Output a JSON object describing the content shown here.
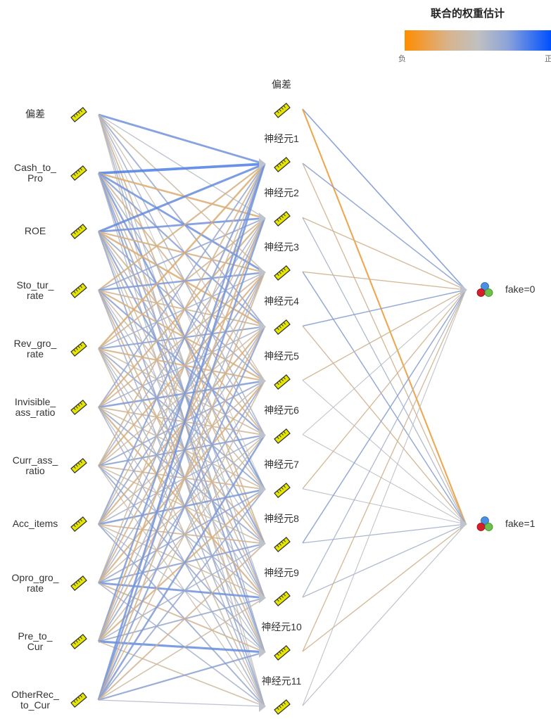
{
  "legend": {
    "title": "联合的权重估计",
    "negative_label": "负",
    "positive_label": "正",
    "colors": {
      "negative": "#ff8c00",
      "neutral": "#c0c0c0",
      "positive": "#0050ff"
    }
  },
  "layers": {
    "input": [
      "偏差",
      "Cash_to_\nPro",
      "ROE",
      "Sto_tur_\nrate",
      "Rev_gro_\nrate",
      "Invisible_\nass_ratio",
      "Curr_ass_\nratio",
      "Acc_items",
      "Opro_gro_\nrate",
      "Pre_to_\nCur",
      "OtherRec_\nto_Cur"
    ],
    "hidden": [
      "偏差",
      "神经元1",
      "神经元2",
      "神经元3",
      "神经元4",
      "神经元5",
      "神经元6",
      "神经元7",
      "神经元8",
      "神经元9",
      "神经元10",
      "神经元11"
    ],
    "output": [
      "fake=0",
      "fake=1"
    ]
  },
  "icons": {
    "input_node": "ruler-icon",
    "hidden_node": "ruler-icon",
    "output_node": "nominal-set-icon"
  },
  "weights": {
    "input_to_hidden": [
      [
        0.6,
        0.1,
        -0.2,
        0.3,
        -0.1,
        0.2,
        0.0,
        -0.3,
        0.1,
        0.2,
        -0.1
      ],
      [
        0.9,
        -0.5,
        0.6,
        0.4,
        -0.3,
        0.2,
        0.5,
        -0.2,
        0.3,
        0.4,
        0.1
      ],
      [
        0.7,
        0.6,
        -0.4,
        -0.5,
        0.3,
        -0.3,
        0.2,
        0.4,
        -0.2,
        0.1,
        0.3
      ],
      [
        -0.4,
        0.3,
        0.5,
        -0.3,
        -0.4,
        0.4,
        -0.2,
        0.1,
        0.3,
        -0.3,
        0.2
      ],
      [
        -0.5,
        -0.3,
        0.2,
        0.4,
        -0.4,
        -0.2,
        0.3,
        -0.3,
        0.1,
        0.2,
        -0.2
      ],
      [
        0.3,
        -0.4,
        -0.3,
        0.2,
        0.5,
        -0.3,
        -0.2,
        0.3,
        -0.4,
        0.1,
        0.2
      ],
      [
        -0.3,
        0.2,
        -0.4,
        -0.2,
        0.3,
        0.4,
        -0.3,
        -0.2,
        0.2,
        0.3,
        -0.1
      ],
      [
        0.4,
        -0.2,
        0.3,
        -0.4,
        -0.2,
        0.2,
        0.5,
        -0.3,
        -0.2,
        0.1,
        0.3
      ],
      [
        -0.2,
        0.3,
        -0.3,
        0.2,
        -0.4,
        -0.2,
        0.3,
        0.4,
        0.6,
        -0.3,
        0.2
      ],
      [
        0.5,
        -0.4,
        0.2,
        -0.3,
        0.3,
        -0.2,
        -0.4,
        0.2,
        0.3,
        0.7,
        -0.2
      ],
      [
        0.6,
        0.5,
        -0.3,
        0.4,
        -0.2,
        0.5,
        0.3,
        -0.3,
        -0.2,
        0.4,
        0.1
      ]
    ],
    "hidden_to_output": [
      [
        0.5,
        -0.9
      ],
      [
        0.4,
        -0.3
      ],
      [
        -0.3,
        0.2
      ],
      [
        -0.3,
        0.4
      ],
      [
        0.4,
        -0.3
      ],
      [
        -0.3,
        0.05
      ],
      [
        0.05,
        0.05
      ],
      [
        -0.3,
        0.05
      ],
      [
        0.4,
        0.2
      ],
      [
        0.2,
        0.2
      ],
      [
        -0.3,
        -0.3
      ],
      [
        0.05,
        0.1
      ]
    ]
  }
}
